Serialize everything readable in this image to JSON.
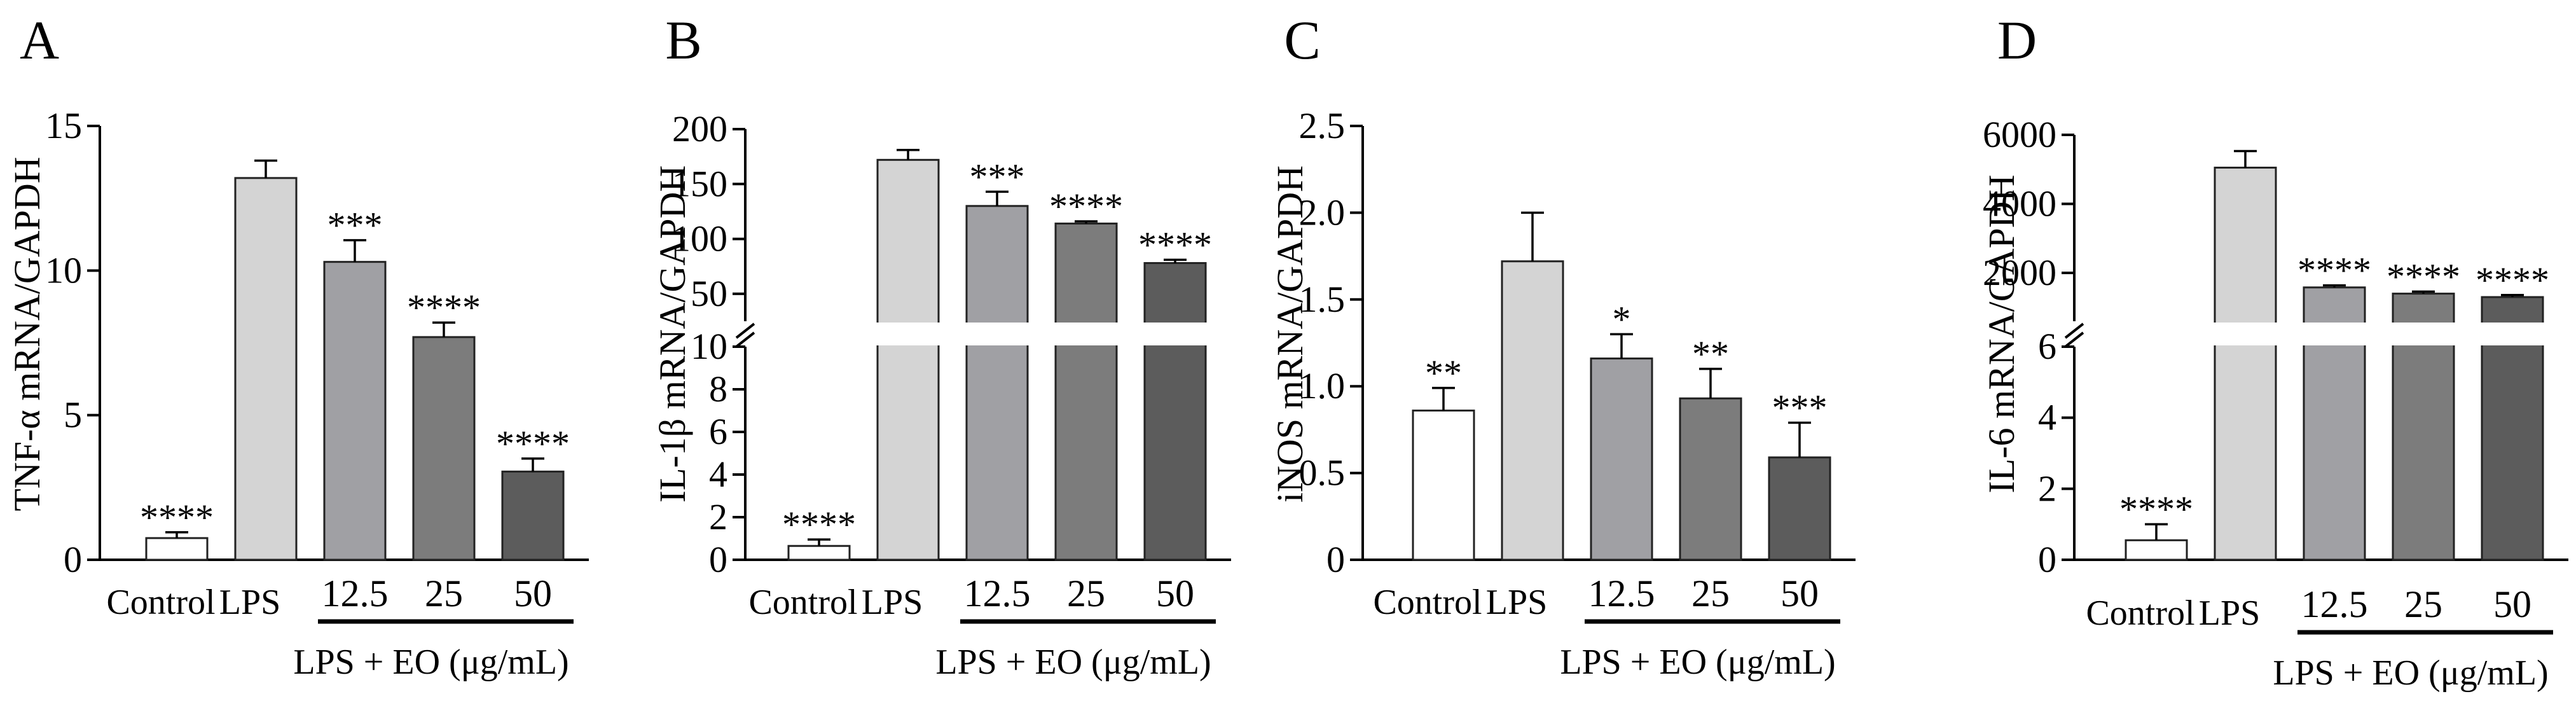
{
  "chart_data": [
    {
      "panel": "A",
      "type": "bar",
      "ylabel": "TNF-α mRNA/GAPDH",
      "xlabel": "LPS + EO (μg/mL)",
      "categories": [
        "Control",
        "LPS",
        "12.5",
        "25",
        "50"
      ],
      "values": [
        0.75,
        13.2,
        10.3,
        7.7,
        3.05
      ],
      "errors": [
        0.2,
        0.6,
        0.75,
        0.5,
        0.45
      ],
      "significance": [
        "****",
        "",
        "***",
        "****",
        "****"
      ],
      "colors": [
        "#ffffff",
        "#d4d4d4",
        "#a0a0a4",
        "#7c7c7c",
        "#5c5c5c"
      ],
      "ylim": [
        0,
        15
      ],
      "yticks": [
        0,
        5,
        10,
        15
      ]
    },
    {
      "panel": "B",
      "type": "bar",
      "ylabel": "IL-1β mRNA/GAPDH",
      "xlabel": "LPS + EO (μg/mL)",
      "categories": [
        "Control",
        "LPS",
        "12.5",
        "25",
        "50"
      ],
      "values": [
        0.65,
        172,
        130,
        114,
        78
      ],
      "errors": [
        0.3,
        9,
        13,
        2,
        3
      ],
      "significance": [
        "****",
        "",
        "***",
        "****",
        "****"
      ],
      "colors": [
        "#ffffff",
        "#d4d4d4",
        "#a0a0a4",
        "#7c7c7c",
        "#5c5c5c"
      ],
      "ylim_lower": [
        0,
        10
      ],
      "ylim_upper": [
        25,
        200
      ],
      "yticks_lower": [
        0,
        2,
        4,
        6,
        8,
        10
      ],
      "yticks_upper": [
        50,
        100,
        150,
        200
      ]
    },
    {
      "panel": "C",
      "type": "bar",
      "ylabel": "iNOS mRNA/GAPDH",
      "xlabel": "LPS + EO (μg/mL)",
      "categories": [
        "Control",
        "LPS",
        "12.5",
        "25",
        "50"
      ],
      "values": [
        0.86,
        1.72,
        1.16,
        0.93,
        0.59
      ],
      "errors": [
        0.13,
        0.28,
        0.14,
        0.17,
        0.2
      ],
      "significance": [
        "**",
        "",
        "*",
        "**",
        "***"
      ],
      "colors": [
        "#ffffff",
        "#d4d4d4",
        "#a0a0a4",
        "#7c7c7c",
        "#5c5c5c"
      ],
      "ylim": [
        0,
        2.5
      ],
      "yticks": [
        "0",
        "0.5",
        "1.0",
        "1.5",
        "2.0",
        "2.5"
      ]
    },
    {
      "panel": "D",
      "type": "bar",
      "ylabel": "IL-6 mRNA/GAPDH",
      "xlabel": "LPS + EO (μg/mL)",
      "categories": [
        "Control",
        "LPS",
        "12.5",
        "25",
        "50"
      ],
      "values": [
        0.55,
        5050,
        1580,
        1400,
        1300
      ],
      "errors": [
        0.45,
        480,
        60,
        60,
        60
      ],
      "significance": [
        "****",
        "",
        "****",
        "****",
        "****"
      ],
      "colors": [
        "#ffffff",
        "#d4d4d4",
        "#a0a0a4",
        "#7c7c7c",
        "#5c5c5c"
      ],
      "ylim_lower": [
        0,
        6
      ],
      "ylim_upper": [
        600,
        6000
      ],
      "yticks_lower": [
        0,
        2,
        4,
        6
      ],
      "yticks_upper": [
        2000,
        4000,
        6000
      ]
    }
  ]
}
